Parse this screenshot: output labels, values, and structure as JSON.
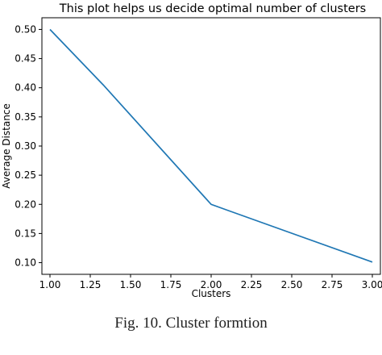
{
  "chart_data": {
    "type": "line",
    "title": "This plot helps us decide optimal number of clusters",
    "xlabel": "Clusters",
    "ylabel": "Average Distance",
    "x": [
      1,
      1.33,
      2,
      2.1,
      3
    ],
    "series": [
      {
        "values": [
          0.5,
          0.405,
          0.2,
          0.19,
          0.101
        ]
      }
    ],
    "xlim": [
      0.95,
      3.05
    ],
    "ylim": [
      0.08,
      0.52
    ],
    "xticks": [
      "1.00",
      "1.25",
      "1.50",
      "1.75",
      "2.00",
      "2.25",
      "2.50",
      "2.75",
      "3.00"
    ],
    "yticks": [
      "0.10",
      "0.15",
      "0.20",
      "0.25",
      "0.30",
      "0.35",
      "0.40",
      "0.45",
      "0.50"
    ],
    "grid": false,
    "line_color": "#1f77b4"
  },
  "caption": "Fig. 10. Cluster formtion"
}
